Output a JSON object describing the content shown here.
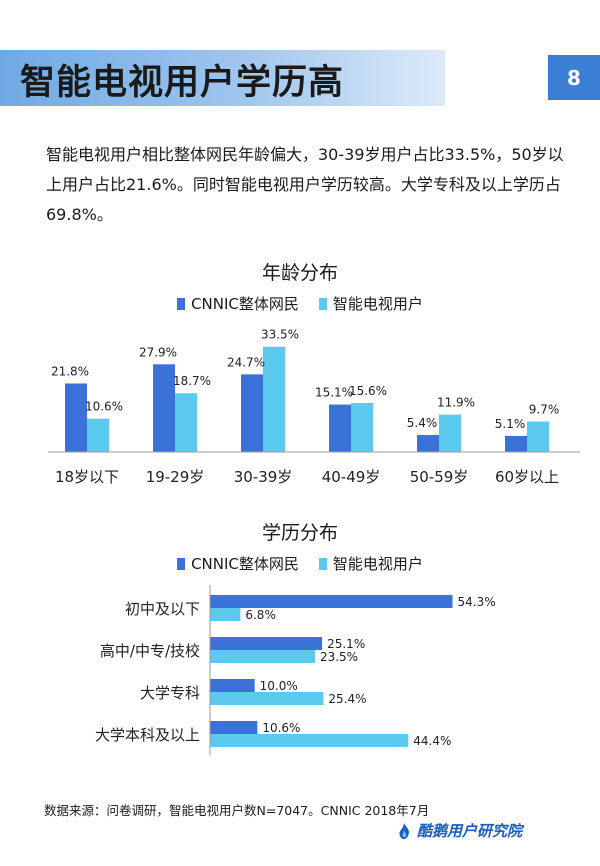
{
  "header": {
    "title": "智能电视用户学历高",
    "page_number": "8"
  },
  "description": "智能电视用户相比整体网民年龄偏大，30-39岁用户占比33.5%，50岁以上用户占比21.6%。同时智能电视用户学历较高。大学专科及以上学历占69.8%。",
  "colors": {
    "series_a": "#3a72d9",
    "series_b": "#5bcaee",
    "accent": "#3a7fd5"
  },
  "chart_data": [
    {
      "type": "bar",
      "title": "年龄分布",
      "categories": [
        "18岁以下",
        "19-29岁",
        "30-39岁",
        "40-49岁",
        "50-59岁",
        "60岁以上"
      ],
      "series": [
        {
          "name": "CNNIC整体网民",
          "values": [
            21.8,
            27.9,
            24.7,
            15.1,
            5.4,
            5.1
          ],
          "labels": [
            "21.8%",
            "27.9%",
            "24.7%",
            "15.1%",
            "5.4%",
            "5.1%"
          ]
        },
        {
          "name": "智能电视用户",
          "values": [
            10.6,
            18.7,
            33.5,
            15.6,
            11.9,
            9.7
          ],
          "labels": [
            "10.6%",
            "18.7%",
            "33.5%",
            "15.6%",
            "11.9%",
            "9.7%"
          ]
        }
      ],
      "ylim": [
        0,
        35
      ],
      "grid": false,
      "legend": "top-center"
    },
    {
      "type": "bar",
      "orientation": "horizontal",
      "title": "学历分布",
      "categories": [
        "初中及以下",
        "高中/中专/技校",
        "大学专科",
        "大学本科及以上"
      ],
      "series": [
        {
          "name": "CNNIC整体网民",
          "values": [
            54.3,
            25.1,
            10.0,
            10.6
          ],
          "labels": [
            "54.3%",
            "25.1%",
            "10.0%",
            "10.6%"
          ]
        },
        {
          "name": "智能电视用户",
          "values": [
            6.8,
            23.5,
            25.4,
            44.4
          ],
          "labels": [
            "6.8%",
            "23.5%",
            "25.4%",
            "44.4%"
          ]
        }
      ],
      "xlim": [
        0,
        60
      ],
      "grid": false,
      "legend": "top-center"
    }
  ],
  "footer": {
    "source": "数据来源：问卷调研，智能电视用户数N=7047。CNNIC 2018年7月",
    "brand": "酷鹅用户研究院"
  }
}
